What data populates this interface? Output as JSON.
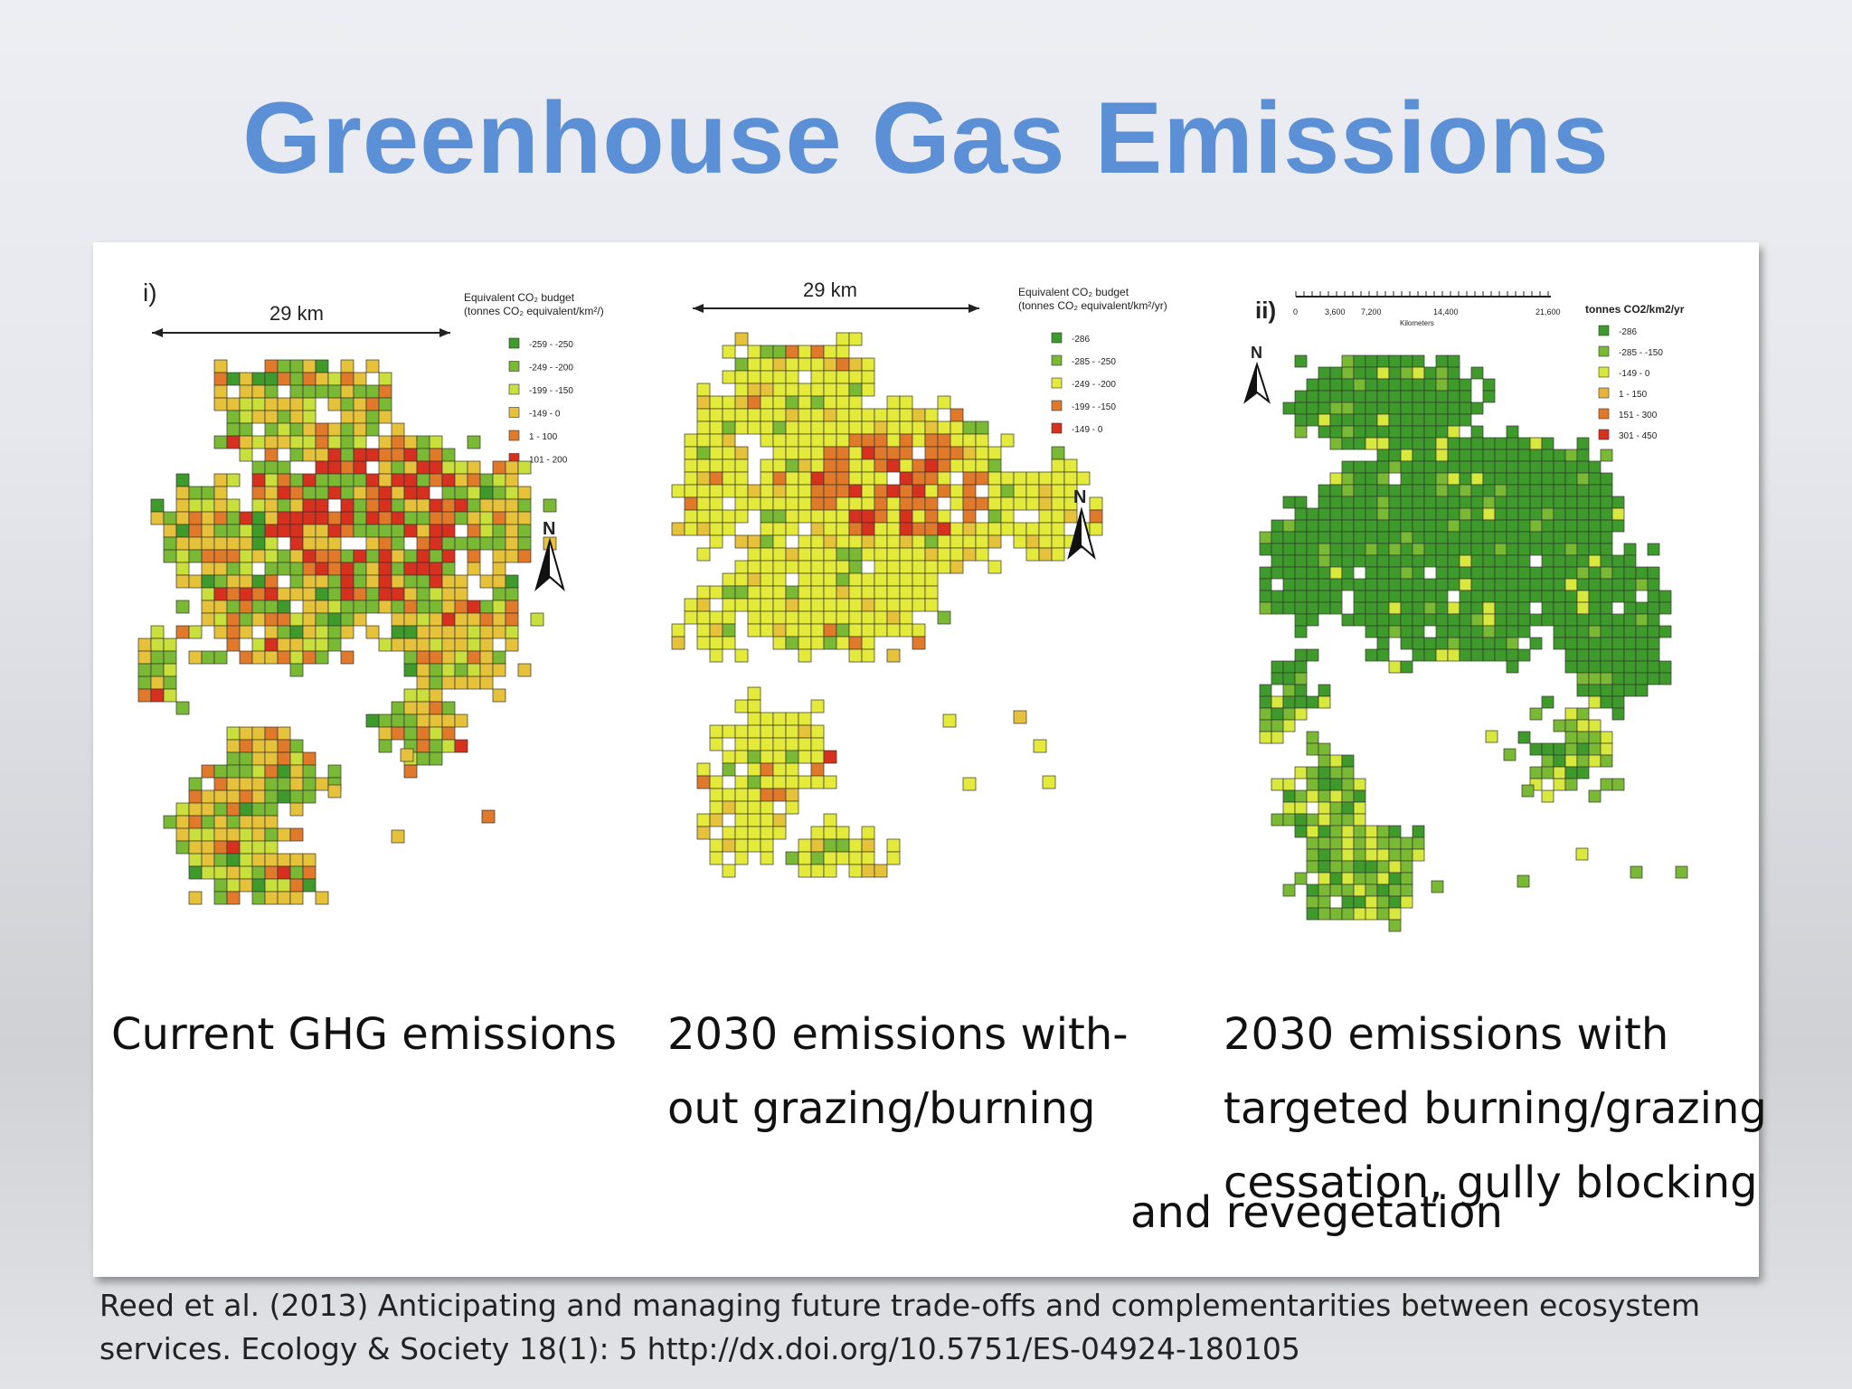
{
  "slide": {
    "title": "Greenhouse Gas Emissions"
  },
  "maps": [
    {
      "panel_label": "i)",
      "scale_label": "29 km",
      "north_label": "N",
      "legend": {
        "title_line1": "Equivalent CO₂ budget",
        "title_line2": "(tonnes CO₂ equivalent/km²/)",
        "classes": [
          {
            "label": "-259 - -250",
            "color": "#3e9a2a"
          },
          {
            "label": "-249 - -200",
            "color": "#7ab934"
          },
          {
            "label": "-199 - -150",
            "color": "#c8df3c"
          },
          {
            "label": "-149 - 0",
            "color": "#e6c13a"
          },
          {
            "label": "1 - 100",
            "color": "#e07a2a"
          },
          {
            "label": "101 - 200",
            "color": "#d8301e"
          }
        ]
      },
      "caption": [
        "Current GHG emissions"
      ]
    },
    {
      "scale_label": "29 km",
      "north_label": "N",
      "legend": {
        "title_line1": "Equivalent CO₂ budget",
        "title_line2": "(tonnes CO₂ equivalent/km²/yr)",
        "classes": [
          {
            "label": "-286",
            "color": "#3e9a2a"
          },
          {
            "label": "-285 - -250",
            "color": "#7ab934"
          },
          {
            "label": "-249 - -200",
            "color": "#e3ea3a"
          },
          {
            "label": "-199 - -150",
            "color": "#e07a2a"
          },
          {
            "label": "-149 - 0",
            "color": "#d8301e"
          }
        ]
      },
      "caption": [
        "2030 emissions with-",
        "out grazing/burning"
      ]
    },
    {
      "panel_label": "ii)",
      "north_label": "N",
      "scale_ticks": [
        "0",
        "3,600",
        "7,200",
        "14,400",
        "21,600"
      ],
      "scale_unit": "Kilometers",
      "legend": {
        "title_line1": "tonnes CO2/km2/yr",
        "classes": [
          {
            "label": "-286",
            "color": "#3e9a2a"
          },
          {
            "label": "-285 - -150",
            "color": "#7ab934"
          },
          {
            "label": "-149 - 0",
            "color": "#d9e83c"
          },
          {
            "label": "1 - 150",
            "color": "#e6b43a"
          },
          {
            "label": "151 - 300",
            "color": "#e07a2a"
          },
          {
            "label": "301 - 450",
            "color": "#d8301e"
          }
        ]
      },
      "caption": [
        "2030 emissions with",
        "targeted burning/grazing",
        "cessation, gully blocking",
        "and revegetation"
      ]
    }
  ],
  "citation": {
    "line1": "Reed et al. (2013) Anticipating and managing future trade-offs and complementarities between ecosystem",
    "line2": "services. Ecology & Society 18(1): 5 http://dx.doi.org/10.5751/ES-04924-180105"
  }
}
